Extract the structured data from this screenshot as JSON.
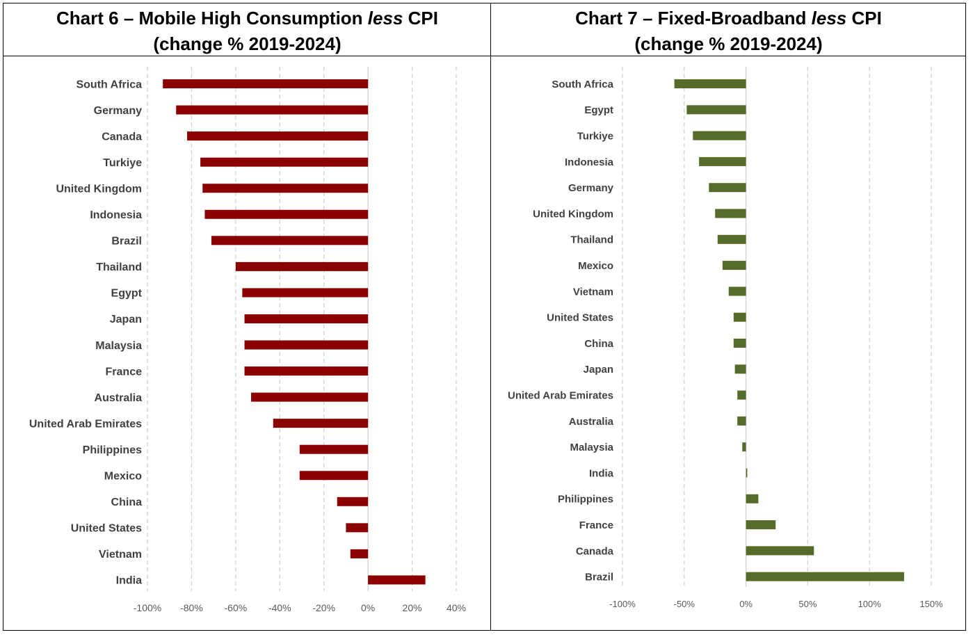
{
  "charts": [
    {
      "title": {
        "pre": "Chart 6 – Mobile High Consumption ",
        "italic": "less",
        "post": " CPI",
        "line2": "(change % 2019-2024)"
      }
    },
    {
      "title": {
        "pre": "Chart 7 – Fixed-Broadband ",
        "italic": "less",
        "post": " CPI",
        "line2": "(change % 2019-2024)"
      }
    }
  ],
  "chart_data": [
    {
      "type": "bar",
      "orientation": "horizontal",
      "title": "Chart 6 – Mobile High Consumption less CPI (change % 2019-2024)",
      "categories": [
        "South Africa",
        "Germany",
        "Canada",
        "Turkiye",
        "United Kingdom",
        "Indonesia",
        "Brazil",
        "Thailand",
        "Egypt",
        "Japan",
        "Malaysia",
        "France",
        "Australia",
        "United Arab Emirates",
        "Philippines",
        "Mexico",
        "China",
        "United States",
        "Vietnam",
        "India"
      ],
      "values": [
        -93,
        -87,
        -82,
        -76,
        -75,
        -74,
        -71,
        -60,
        -57,
        -56,
        -56,
        -56,
        -53,
        -43,
        -31,
        -31,
        -14,
        -10,
        -8,
        26
      ],
      "unit": "%",
      "xlim": [
        -100,
        40
      ],
      "xticks": [
        -100,
        -80,
        -60,
        -40,
        -20,
        0,
        20,
        40
      ],
      "xtick_labels": [
        "-100%",
        "-80%",
        "-60%",
        "-40%",
        "-20%",
        "0%",
        "20%",
        "40%"
      ],
      "bar_color": "#8b0000",
      "grid": "vertical dashed"
    },
    {
      "type": "bar",
      "orientation": "horizontal",
      "title": "Chart 7 – Fixed-Broadband less CPI (change % 2019-2024)",
      "categories": [
        "South Africa",
        "Egypt",
        "Turkiye",
        "Indonesia",
        "Germany",
        "United Kingdom",
        "Thailand",
        "Mexico",
        "Vietnam",
        "United States",
        "China",
        "Japan",
        "United Arab Emirates",
        "Australia",
        "Malaysia",
        "India",
        "Philippines",
        "France",
        "Canada",
        "Brazil"
      ],
      "values": [
        -58,
        -48,
        -43,
        -38,
        -30,
        -25,
        -23,
        -19,
        -14,
        -10,
        -10,
        -9,
        -7,
        -7,
        -3,
        1,
        10,
        24,
        55,
        128
      ],
      "unit": "%",
      "xlim": [
        -100,
        150
      ],
      "xticks": [
        -100,
        -50,
        0,
        50,
        100,
        150
      ],
      "xtick_labels": [
        "-100%",
        "-50%",
        "0%",
        "50%",
        "100%",
        "150%"
      ],
      "bar_color": "#546b2a",
      "grid": "vertical dashed"
    }
  ]
}
